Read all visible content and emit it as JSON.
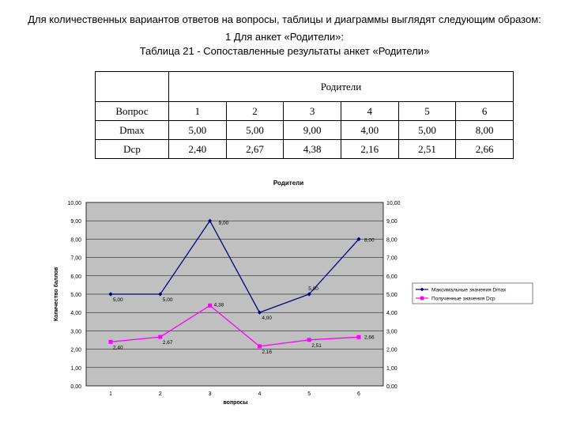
{
  "intro": {
    "line1": "Для количественных вариантов ответов на вопросы, таблицы и диаграммы выглядят следующим образом:",
    "line2": "1 Для анкет «Родители»:",
    "line3": "Таблица 21 - Сопоставленные результаты анкет «Родители»"
  },
  "table": {
    "group_header": "Родители",
    "header": [
      "Вопрос",
      "1",
      "2",
      "3",
      "4",
      "5",
      "6"
    ],
    "rows": [
      [
        "Dmax",
        "5,00",
        "5,00",
        "9,00",
        "4,00",
        "5,00",
        "8,00"
      ],
      [
        "Dср",
        "2,40",
        "2,67",
        "4,38",
        "2,16",
        "2,51",
        "2,66"
      ]
    ]
  },
  "chart_data": {
    "type": "line",
    "title": "Родители",
    "xlabel": "вопросы",
    "ylabel": "Количество баллов",
    "categories": [
      "1",
      "2",
      "3",
      "4",
      "5",
      "6"
    ],
    "ylim": [
      0,
      10
    ],
    "yticks": [
      "0,00",
      "1,00",
      "2,00",
      "3,00",
      "4,00",
      "5,00",
      "6,00",
      "7,00",
      "8,00",
      "9,00",
      "10,00"
    ],
    "grid": true,
    "legend_position": "right",
    "plot_background": "#c0c0c0",
    "series": [
      {
        "name": "Максимальные значения Dmax",
        "values": [
          5,
          5,
          9,
          4,
          5,
          8
        ],
        "labels": [
          "5,00",
          "5,00",
          "9,00",
          "4,00",
          "5,00",
          "8,00"
        ],
        "color": "#000080",
        "marker": "diamond"
      },
      {
        "name": "Полученные значения Dср",
        "values": [
          2.4,
          2.67,
          4.38,
          2.16,
          2.51,
          2.66
        ],
        "labels": [
          "2,40",
          "2,67",
          "4,38",
          "2,16",
          "2,51",
          "2,66"
        ],
        "color": "#ff00ff",
        "marker": "square"
      }
    ]
  }
}
